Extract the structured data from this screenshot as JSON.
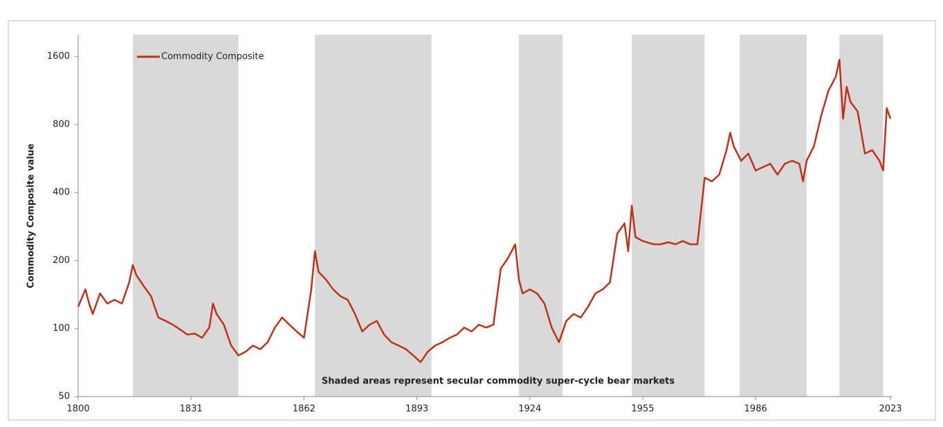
{
  "chart_data": {
    "type": "line",
    "y_label": "Commodity Composite value",
    "annotation": "Shaded areas represent secular commodity super-cycle bear markets",
    "log_y": true,
    "legend": "upper left",
    "shade_color": "#d9d9d9",
    "shaded_ranges": [
      [
        1815,
        1844
      ],
      [
        1865,
        1897
      ],
      [
        1921,
        1933
      ],
      [
        1952,
        1972
      ],
      [
        1981.6,
        2000
      ],
      [
        2009,
        2021
      ]
    ],
    "xlim": [
      1800,
      2023
    ],
    "xticks": [
      1800,
      1831,
      1862,
      1893,
      1924,
      1955,
      1986,
      2023
    ],
    "ylim": [
      50,
      2000
    ],
    "yticks": [
      50,
      100,
      200,
      400,
      800,
      1600
    ],
    "x": [
      1800,
      1802,
      1803,
      1804,
      1806,
      1808,
      1810,
      1812,
      1814,
      1815,
      1816,
      1818,
      1820,
      1822,
      1824,
      1826,
      1828,
      1830,
      1832,
      1834,
      1836,
      1837,
      1838,
      1840,
      1842,
      1844,
      1846,
      1848,
      1850,
      1852,
      1854,
      1856,
      1858,
      1860,
      1862,
      1864,
      1865,
      1866,
      1868,
      1870,
      1872,
      1874,
      1876,
      1878,
      1880,
      1882,
      1884,
      1886,
      1888,
      1890,
      1892,
      1894,
      1896,
      1898,
      1900,
      1902,
      1904,
      1906,
      1908,
      1910,
      1912,
      1914,
      1916,
      1918,
      1920,
      1921,
      1922,
      1924,
      1926,
      1928,
      1930,
      1932,
      1934,
      1936,
      1938,
      1940,
      1942,
      1944,
      1946,
      1948,
      1950,
      1951,
      1952,
      1953,
      1955,
      1958,
      1960,
      1962,
      1964,
      1966,
      1968,
      1970,
      1972,
      1974,
      1976,
      1978,
      1979,
      1980,
      1982,
      1984,
      1986,
      1988,
      1990,
      1992,
      1994,
      1996,
      1998,
      1999,
      2000,
      2002,
      2004,
      2006,
      2008,
      2009,
      2010,
      2011,
      2012,
      2014,
      2016,
      2018,
      2020,
      2021,
      2022,
      2023
    ],
    "series": [
      {
        "name": "Commodity Composite",
        "color": "#c0311a",
        "values": [
          125,
          149,
          129,
          116,
          143,
          129,
          134,
          129,
          160,
          191,
          172,
          154,
          139,
          112,
          108,
          104,
          99,
          94,
          95,
          91,
          101,
          129,
          116,
          104,
          84,
          76,
          79,
          84,
          81,
          87,
          101,
          112,
          104,
          97,
          91,
          149,
          220,
          178,
          165,
          149,
          139,
          134,
          116,
          97,
          104,
          108,
          94,
          87,
          84,
          81,
          76,
          71,
          79,
          84,
          87,
          91,
          94,
          101,
          97,
          104,
          101,
          104,
          184,
          205,
          236,
          165,
          143,
          149,
          143,
          129,
          101,
          87,
          108,
          116,
          112,
          125,
          143,
          149,
          160,
          263,
          292,
          220,
          350,
          254,
          244,
          236,
          236,
          241,
          236,
          244,
          236,
          236,
          465,
          448,
          480,
          616,
          736,
          640,
          553,
          595,
          500,
          518,
          536,
          480,
          536,
          553,
          536,
          448,
          553,
          640,
          877,
          1130,
          1300,
          1550,
          848,
          1175,
          1010,
          914,
          595,
          616,
          553,
          500,
          945,
          848
        ]
      }
    ]
  }
}
